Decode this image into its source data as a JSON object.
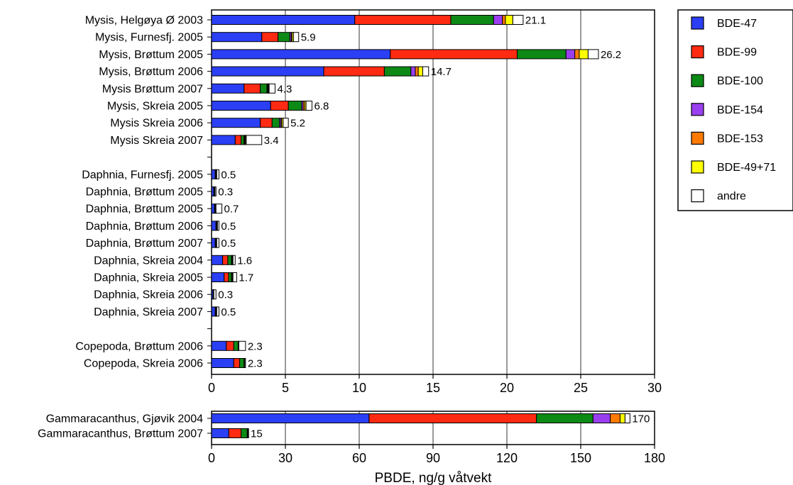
{
  "chart_data": {
    "type": "bar",
    "orientation": "horizontal",
    "stacked": true,
    "xlabel": "PBDE, ng/g våtvekt",
    "legend_position": "right",
    "grid": "vertical",
    "segments": [
      {
        "name": "BDE-47",
        "color": "#2b3ff5"
      },
      {
        "name": "BDE-99",
        "color": "#ff2a12"
      },
      {
        "name": "BDE-100",
        "color": "#0d8a15"
      },
      {
        "name": "BDE-154",
        "color": "#9a3ff0"
      },
      {
        "name": "BDE-153",
        "color": "#ff7a00"
      },
      {
        "name": "BDE-49+71",
        "color": "#ffff00"
      },
      {
        "name": "andre",
        "color": "#ffffff"
      }
    ],
    "panels": [
      {
        "xlim": [
          0,
          30
        ],
        "ticks": [
          0,
          5,
          10,
          15,
          20,
          25,
          30
        ],
        "rows": [
          {
            "label": "Mysis, Helgøya Ø 2003",
            "values": [
              9.7,
              6.5,
              2.9,
              0.6,
              0.2,
              0.5,
              0.7
            ],
            "total": "21.1"
          },
          {
            "label": "Mysis, Furnesfj. 2005",
            "values": [
              3.4,
              1.1,
              0.8,
              0.1,
              0.05,
              0.1,
              0.35
            ],
            "total": "5.9"
          },
          {
            "label": "Mysis, Brøttum 2005",
            "values": [
              12.1,
              8.6,
              3.3,
              0.6,
              0.3,
              0.6,
              0.7
            ],
            "total": "26.2"
          },
          {
            "label": "Mysis, Brøttum 2006",
            "values": [
              7.6,
              4.1,
              1.8,
              0.3,
              0.2,
              0.3,
              0.4
            ],
            "total": "14.7"
          },
          {
            "label": "Mysis Brøttum 2007",
            "values": [
              2.2,
              1.1,
              0.45,
              0.05,
              0.05,
              0.05,
              0.4
            ],
            "total": "4.3"
          },
          {
            "label": "Mysis, Skreia 2005",
            "values": [
              4.0,
              1.2,
              0.9,
              0.1,
              0.1,
              0.1,
              0.4
            ],
            "total": "6.8"
          },
          {
            "label": "Mysis Skreia 2006",
            "values": [
              3.3,
              0.8,
              0.5,
              0.1,
              0.05,
              0.1,
              0.35
            ],
            "total": "5.2"
          },
          {
            "label": "Mysis Skreia 2007",
            "values": [
              1.6,
              0.4,
              0.2,
              0.05,
              0.05,
              0.05,
              1.05
            ],
            "total": "3.4"
          },
          {
            "label": "",
            "values": [],
            "total": ""
          },
          {
            "label": "Daphnia, Furnesfj. 2005",
            "values": [
              0.25,
              0.05,
              0.05,
              0.0,
              0.0,
              0.0,
              0.15
            ],
            "total": "0.5"
          },
          {
            "label": "Daphnia, Brøttum 2005",
            "values": [
              0.15,
              0.05,
              0.03,
              0.0,
              0.0,
              0.0,
              0.07
            ],
            "total": "0.3"
          },
          {
            "label": "Daphnia, Brøttum 2005",
            "values": [
              0.2,
              0.05,
              0.05,
              0.0,
              0.0,
              0.0,
              0.4
            ],
            "total": "0.7"
          },
          {
            "label": "Daphnia, Brøttum 2006",
            "values": [
              0.3,
              0.05,
              0.05,
              0.0,
              0.0,
              0.0,
              0.1
            ],
            "total": "0.5"
          },
          {
            "label": "Daphnia, Brøttum 2007",
            "values": [
              0.25,
              0.05,
              0.05,
              0.0,
              0.0,
              0.0,
              0.15
            ],
            "total": "0.5"
          },
          {
            "label": "Daphnia, Skreia 2004",
            "values": [
              0.75,
              0.35,
              0.25,
              0.05,
              0.0,
              0.05,
              0.15
            ],
            "total": "1.6"
          },
          {
            "label": "Daphnia, Skreia 2005",
            "values": [
              0.85,
              0.3,
              0.2,
              0.05,
              0.0,
              0.05,
              0.25
            ],
            "total": "1.7"
          },
          {
            "label": "Daphnia, Skreia 2006",
            "values": [
              0.1,
              0.03,
              0.02,
              0.0,
              0.0,
              0.0,
              0.15
            ],
            "total": "0.3"
          },
          {
            "label": "Daphnia, Skreia 2007",
            "values": [
              0.25,
              0.05,
              0.05,
              0.0,
              0.0,
              0.0,
              0.15
            ],
            "total": "0.5"
          },
          {
            "label": "",
            "values": [],
            "total": ""
          },
          {
            "label": "Copepoda, Brøttum 2006",
            "values": [
              1.0,
              0.5,
              0.3,
              0.0,
              0.0,
              0.05,
              0.45
            ],
            "total": "2.3"
          },
          {
            "label": "Copepoda, Skreia 2006",
            "values": [
              1.5,
              0.4,
              0.3,
              0.0,
              0.0,
              0.05,
              0.05
            ],
            "total": "2.3"
          }
        ]
      },
      {
        "xlim": [
          0,
          180
        ],
        "ticks": [
          0,
          30,
          60,
          90,
          120,
          150,
          180
        ],
        "rows": [
          {
            "label": "Gammaracanthus, Gjøvik 2004",
            "values": [
              64,
              68,
              23,
              7,
              4,
              2,
              2
            ],
            "total": "170"
          },
          {
            "label": "Gammaracanthus, Brøttum 2007",
            "values": [
              7,
              5,
              2.5,
              0.2,
              0.1,
              0.1,
              0.1
            ],
            "total": "15"
          }
        ]
      }
    ]
  }
}
